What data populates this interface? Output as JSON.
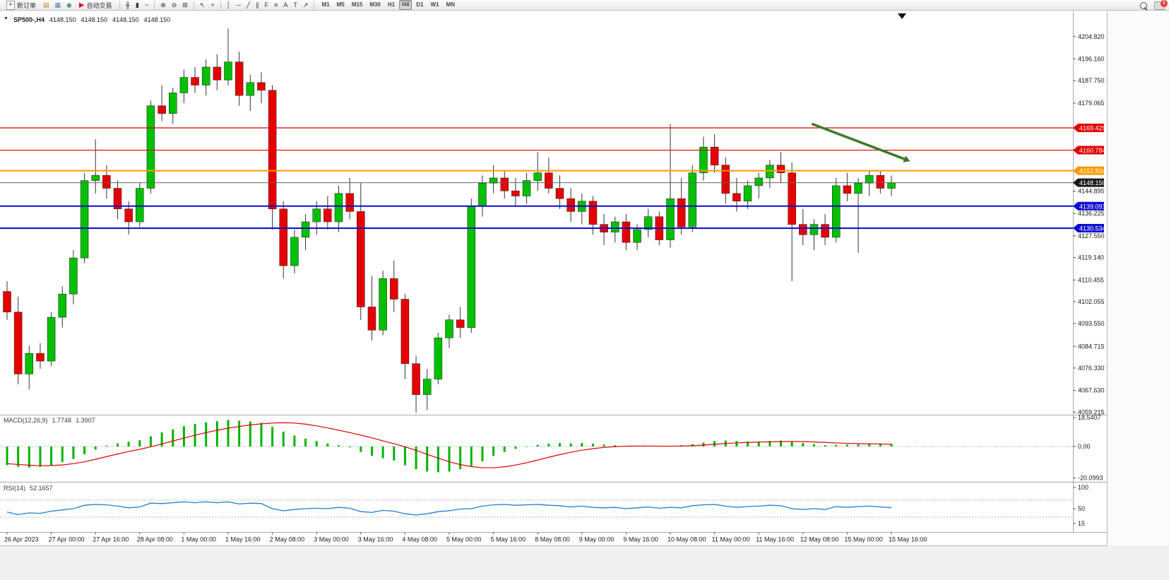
{
  "toolbar": {
    "new_order_label": "新订单",
    "auto_trading_label": "自动交易",
    "items": [
      {
        "name": "profiles-icon",
        "glyph": "▤",
        "color": "#c08a2e"
      },
      {
        "name": "charts-grid-icon",
        "glyph": "▦",
        "color": "#5878b0"
      },
      {
        "name": "market-watch-icon",
        "glyph": "◉",
        "color": "#2e8b57"
      },
      {
        "sep": true
      },
      {
        "name": "bar-chart-icon",
        "glyph": "╫",
        "color": "#333333"
      },
      {
        "name": "candlestick-chart-icon",
        "glyph": "▮",
        "color": "#333333"
      },
      {
        "name": "line-chart-icon",
        "glyph": "~",
        "color": "#333333"
      },
      {
        "sep": true
      },
      {
        "name": "zoom-in-icon",
        "glyph": "⊕",
        "color": "#333333"
      },
      {
        "name": "zoom-out-icon",
        "glyph": "⊖",
        "color": "#333333"
      },
      {
        "name": "tile-windows-icon",
        "glyph": "⊞",
        "color": "#333333"
      },
      {
        "sep": true
      },
      {
        "name": "cursor-icon",
        "glyph": "↖",
        "color": "#333333"
      },
      {
        "name": "crosshair-icon",
        "glyph": "+",
        "color": "#333333"
      },
      {
        "sep": true
      },
      {
        "name": "vertical-line-icon",
        "glyph": "│",
        "color": "#333333"
      },
      {
        "name": "horizontal-line-icon",
        "glyph": "─",
        "color": "#333333"
      },
      {
        "name": "trendline-icon",
        "glyph": "╱",
        "color": "#333333"
      },
      {
        "name": "channel-icon",
        "glyph": "∥",
        "color": "#333333"
      },
      {
        "name": "fibonacci-icon",
        "glyph": "F",
        "color": "#333333"
      },
      {
        "name": "objects-list-icon",
        "glyph": "≡",
        "color": "#333333"
      },
      {
        "name": "text-icon",
        "glyph": "A",
        "color": "#333333"
      },
      {
        "name": "text-label-icon",
        "glyph": "T",
        "color": "#333333"
      },
      {
        "name": "arrows-icon",
        "glyph": "↗",
        "color": "#333333"
      },
      {
        "sep": true
      }
    ],
    "timeframes": [
      "M1",
      "M5",
      "M15",
      "M30",
      "H1",
      "H4",
      "D1",
      "W1",
      "MN"
    ],
    "active_timeframe": "H4",
    "notification_badge": "1"
  },
  "chart_header": {
    "symbol": "SP500-,H4",
    "ohlc": [
      "4148.150",
      "4148.150",
      "4148.150",
      "4148.150"
    ]
  },
  "indicators": {
    "macd": {
      "label": "MACD(12,26,9)",
      "main_value": "1.7748",
      "signal_value": "1.3907",
      "axis_ticks": [
        "18.5407",
        "0.00",
        "-20.0993"
      ]
    },
    "rsi": {
      "label": "RSI(14)",
      "value": "52.1657",
      "axis_ticks": [
        "100",
        "50",
        "15"
      ],
      "levels": [
        70,
        30
      ]
    }
  },
  "chart_data": {
    "type": "candlestick",
    "symbol": "SP500-",
    "timeframe": "H4",
    "current_price": 4148.15,
    "colors": {
      "up": "#00c000",
      "down": "#e60000",
      "wick": "#333333",
      "rsi_line": "#1e7fd2",
      "macd_hist": "#00b400",
      "macd_signal": "#dd0000"
    },
    "price_axis_ticks": [
      "4204.820",
      "4196.160",
      "4187.750",
      "4179.065",
      "4144.895",
      "4136.225",
      "4127.550",
      "4119.140",
      "4110.455",
      "4102.055",
      "4093.550",
      "4084.715",
      "4076.330",
      "4067.630",
      "4059.215"
    ],
    "hlines": [
      {
        "price": 4169.429,
        "label": "4169.429",
        "color": "#e00000",
        "tag": "#e00000",
        "w": 1.2
      },
      {
        "price": 4160.784,
        "label": "4160.784",
        "color": "#e00000",
        "tag": "#e00000",
        "w": 1.2
      },
      {
        "price": 4152.834,
        "label": "4152.834",
        "color": "#ff9800",
        "tag": "#ff9800",
        "w": 2
      },
      {
        "price": 4148.15,
        "label": "4148.150",
        "color": "#666666",
        "tag": "#1a1a1a",
        "w": 1
      },
      {
        "price": 4139.091,
        "label": "4139.091",
        "color": "#0d0dcf",
        "tag": "#0d0dcf",
        "w": 2
      },
      {
        "price": 4130.534,
        "label": "4130.534",
        "color": "#0d0dcf",
        "tag": "#0d0dcf",
        "w": 2
      }
    ],
    "arrow": {
      "x1_bar": 72.8,
      "y1_price": 4171.0,
      "x2_bar": 81.7,
      "y2_price": 4156.5,
      "color": "#3c7a28"
    },
    "time_axis": {
      "bar_step": 4,
      "labels": [
        "26 Apr 2023",
        "27 Apr 00:00",
        "27 Apr 16:00",
        "28 Apr 08:00",
        "1 May 00:00",
        "1 May 16:00",
        "2 May 08:00",
        "3 May 00:00",
        "3 May 16:00",
        "4 May 08:00",
        "5 May 00:00",
        "5 May 16:00",
        "8 May 08:00",
        "9 May 00:00",
        "9 May 16:00",
        "10 May 08:00",
        "11 May 00:00",
        "11 May 16:00",
        "12 May 08:00",
        "15 May 00:00",
        "15 May 16:00"
      ]
    },
    "candles": [
      [
        4106,
        4110,
        4095,
        4098
      ],
      [
        4098,
        4104,
        4070,
        4074
      ],
      [
        4074,
        4085,
        4068,
        4082
      ],
      [
        4082,
        4086,
        4076,
        4079
      ],
      [
        4079,
        4098,
        4077,
        4096
      ],
      [
        4096,
        4108,
        4092,
        4105
      ],
      [
        4105,
        4122,
        4101,
        4119
      ],
      [
        4119,
        4152,
        4117,
        4149
      ],
      [
        4149,
        4165,
        4144,
        4151
      ],
      [
        4151,
        4155,
        4142,
        4146
      ],
      [
        4146,
        4149,
        4134,
        4138
      ],
      [
        4138,
        4141,
        4128,
        4133
      ],
      [
        4133,
        4148,
        4131,
        4146
      ],
      [
        4146,
        4180,
        4144,
        4178
      ],
      [
        4178,
        4186,
        4172,
        4175
      ],
      [
        4175,
        4185,
        4171,
        4183
      ],
      [
        4183,
        4192,
        4179,
        4189
      ],
      [
        4189,
        4193,
        4183,
        4186
      ],
      [
        4186,
        4196,
        4182,
        4193
      ],
      [
        4193,
        4198,
        4184,
        4188
      ],
      [
        4188,
        4208,
        4186,
        4195
      ],
      [
        4195,
        4199,
        4178,
        4182
      ],
      [
        4182,
        4190,
        4176,
        4187
      ],
      [
        4187,
        4191,
        4179,
        4184
      ],
      [
        4184,
        4186,
        4130,
        4138
      ],
      [
        4138,
        4141,
        4111,
        4116
      ],
      [
        4116,
        4130,
        4113,
        4127
      ],
      [
        4127,
        4136,
        4122,
        4133
      ],
      [
        4133,
        4141,
        4128,
        4138
      ],
      [
        4138,
        4143,
        4130,
        4133
      ],
      [
        4133,
        4147,
        4129,
        4144
      ],
      [
        4144,
        4150,
        4134,
        4137
      ],
      [
        4137,
        4148,
        4095,
        4100
      ],
      [
        4100,
        4112,
        4087,
        4091
      ],
      [
        4091,
        4114,
        4089,
        4111
      ],
      [
        4111,
        4118,
        4098,
        4103
      ],
      [
        4103,
        4105,
        4072,
        4078
      ],
      [
        4078,
        4081,
        4059,
        4066
      ],
      [
        4066,
        4076,
        4060,
        4072
      ],
      [
        4072,
        4090,
        4070,
        4088
      ],
      [
        4088,
        4097,
        4084,
        4095
      ],
      [
        4095,
        4100,
        4088,
        4092
      ],
      [
        4092,
        4142,
        4090,
        4139
      ],
      [
        4139,
        4151,
        4135,
        4148
      ],
      [
        4148,
        4155,
        4144,
        4150
      ],
      [
        4150,
        4153,
        4142,
        4145
      ],
      [
        4145,
        4150,
        4139,
        4143
      ],
      [
        4143,
        4152,
        4140,
        4149
      ],
      [
        4149,
        4160,
        4145,
        4152
      ],
      [
        4152,
        4158,
        4144,
        4146
      ],
      [
        4146,
        4151,
        4138,
        4142
      ],
      [
        4142,
        4146,
        4133,
        4137
      ],
      [
        4137,
        4144,
        4132,
        4141
      ],
      [
        4141,
        4143,
        4128,
        4132
      ],
      [
        4132,
        4136,
        4124,
        4129
      ],
      [
        4129,
        4135,
        4125,
        4133
      ],
      [
        4133,
        4136,
        4122,
        4125
      ],
      [
        4125,
        4132,
        4122,
        4130
      ],
      [
        4130,
        4138,
        4127,
        4135
      ],
      [
        4135,
        4137,
        4124,
        4126
      ],
      [
        4126,
        4171,
        4123,
        4142
      ],
      [
        4142,
        4150,
        4128,
        4131
      ],
      [
        4131,
        4155,
        4129,
        4152
      ],
      [
        4152,
        4166,
        4149,
        4162
      ],
      [
        4162,
        4167,
        4152,
        4155
      ],
      [
        4155,
        4158,
        4140,
        4144
      ],
      [
        4144,
        4150,
        4137,
        4141
      ],
      [
        4141,
        4149,
        4138,
        4147
      ],
      [
        4147,
        4152,
        4142,
        4150
      ],
      [
        4150,
        4157,
        4146,
        4155
      ],
      [
        4155,
        4160,
        4148,
        4152
      ],
      [
        4152,
        4156,
        4110,
        4132
      ],
      [
        4132,
        4138,
        4124,
        4128
      ],
      [
        4128,
        4134,
        4122,
        4132
      ],
      [
        4132,
        4136,
        4124,
        4127
      ],
      [
        4127,
        4150,
        4125,
        4147
      ],
      [
        4147,
        4152,
        4141,
        4144
      ],
      [
        4144,
        4150,
        4121,
        4148
      ],
      [
        4148,
        4153,
        4143,
        4151
      ],
      [
        4151,
        4153,
        4144,
        4146
      ],
      [
        4146,
        4151,
        4143,
        4148.15
      ]
    ],
    "macd": {
      "main": [
        -12,
        -13,
        -13.5,
        -13,
        -12,
        -10,
        -8,
        -5,
        -2,
        0.5,
        2,
        3,
        4,
        6.5,
        9,
        11,
        13,
        14.5,
        15.5,
        16.2,
        17,
        16.5,
        16,
        15.2,
        12.5,
        9.5,
        7,
        5,
        3.5,
        2,
        0.8,
        -0.5,
        -3.5,
        -6,
        -7.5,
        -9,
        -12,
        -14.5,
        -16,
        -16.5,
        -16,
        -14.5,
        -12.5,
        -9.5,
        -6,
        -3.5,
        -1.5,
        -0.2,
        1,
        1.8,
        2.2,
        2,
        2.2,
        1.8,
        1.2,
        0.8,
        0.2,
        0,
        0.2,
        0,
        0.5,
        0.8,
        1.5,
        2.5,
        3.5,
        3.8,
        3.5,
        3.2,
        3.2,
        3.5,
        3.8,
        3.2,
        2.2,
        1.5,
        0.8,
        1,
        1.2,
        1.3,
        1.6,
        1.7,
        1.7748
      ],
      "signal": [
        -11,
        -11.5,
        -12,
        -12.3,
        -12.2,
        -11.8,
        -11,
        -9.8,
        -8.2,
        -6.5,
        -4.8,
        -3.2,
        -1.8,
        -0.2,
        1.6,
        3.5,
        5.4,
        7.2,
        8.9,
        10.4,
        11.7,
        12.8,
        13.8,
        14.5,
        15,
        15.2,
        15,
        14.3,
        13.2,
        11.9,
        10.4,
        8.9,
        7.3,
        5.5,
        3.6,
        1.8,
        -0.2,
        -2.5,
        -5,
        -7.5,
        -9.8,
        -11.6,
        -12.9,
        -13.6,
        -13.6,
        -13,
        -11.9,
        -10.4,
        -8.7,
        -6.9,
        -5.2,
        -3.7,
        -2.4,
        -1.4,
        -0.6,
        -0.1,
        0.2,
        0.3,
        0.3,
        0.2,
        0.2,
        0.3,
        0.5,
        0.9,
        1.4,
        1.9,
        2.3,
        2.6,
        2.8,
        3,
        3.1,
        3.2,
        3.1,
        2.9,
        2.6,
        2.3,
        2,
        1.8,
        1.7,
        1.6,
        1.3907
      ]
    },
    "rsi": [
      42,
      36,
      40,
      39,
      44,
      47,
      50,
      58,
      60,
      59,
      56,
      52,
      54,
      63,
      62,
      64,
      66,
      64,
      66,
      64,
      66,
      61,
      63,
      62,
      50,
      45,
      48,
      50,
      51,
      50,
      53,
      51,
      43,
      41,
      46,
      44,
      38,
      35,
      38,
      43,
      45,
      49,
      50,
      56,
      59,
      60,
      58,
      59,
      60,
      58,
      57,
      54,
      56,
      53,
      52,
      53,
      50,
      52,
      54,
      51,
      53,
      52,
      57,
      59,
      60,
      56,
      53,
      55,
      56,
      58,
      57,
      50,
      48,
      50,
      48,
      55,
      53,
      55,
      56,
      54,
      52.1657
    ]
  }
}
